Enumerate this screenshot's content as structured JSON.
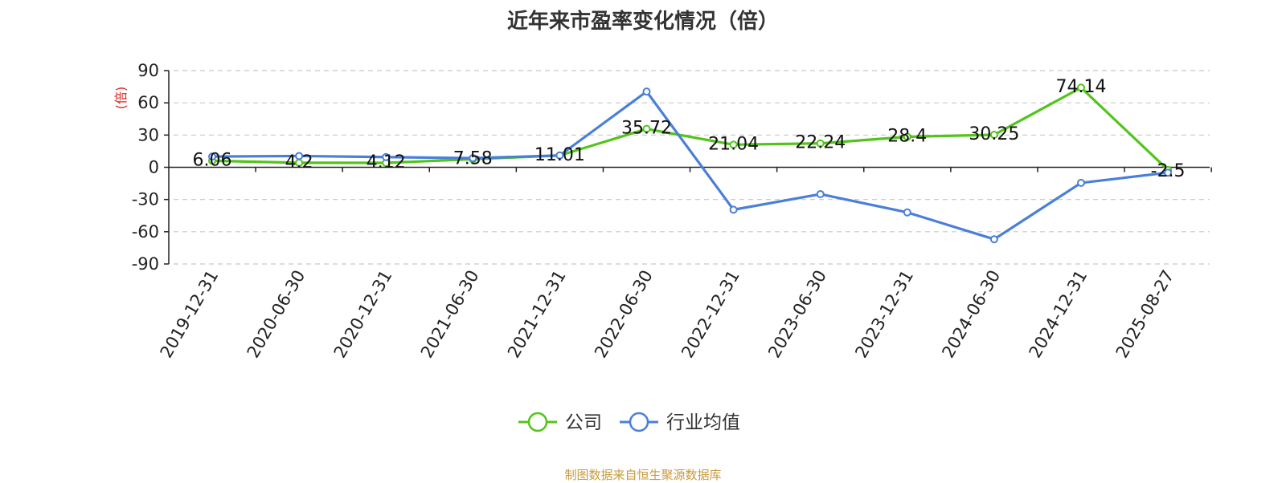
{
  "title": "近年来市盈率变化情况（倍）",
  "source": "制图数据来自恒生聚源数据库",
  "chart_data": {
    "type": "line",
    "title": "近年来市盈率变化情况（倍）",
    "ylabel": "(倍)",
    "xlabel": "",
    "categories": [
      "2019-12-31",
      "2020-06-30",
      "2020-12-31",
      "2021-06-30",
      "2021-12-31",
      "2022-06-30",
      "2022-12-31",
      "2023-06-30",
      "2023-12-31",
      "2024-06-30",
      "2024-12-31",
      "2025-08-27"
    ],
    "ylim": [
      -90,
      90
    ],
    "yticks": [
      90,
      60,
      30,
      0,
      -30,
      -60,
      -90
    ],
    "grid": true,
    "legend_position": "bottom",
    "series": [
      {
        "name": "公司",
        "color": "#52c41a",
        "values": [
          6.06,
          4.2,
          4.12,
          7.58,
          11.01,
          35.72,
          21.04,
          22.24,
          28.4,
          30.25,
          74.14,
          -2.5
        ],
        "labels": [
          "6.06",
          "4.2",
          "4.12",
          "7.58",
          "11.01",
          "35.72",
          "21.04",
          "22.24",
          "28.4",
          "30.25",
          "74.14",
          "-2.5"
        ]
      },
      {
        "name": "行业均值",
        "color": "#4a7fd8",
        "values": [
          10,
          10.5,
          9.5,
          8.5,
          11,
          70.5,
          -39.5,
          -25,
          -42,
          -67,
          -14.5,
          -5
        ]
      }
    ]
  }
}
